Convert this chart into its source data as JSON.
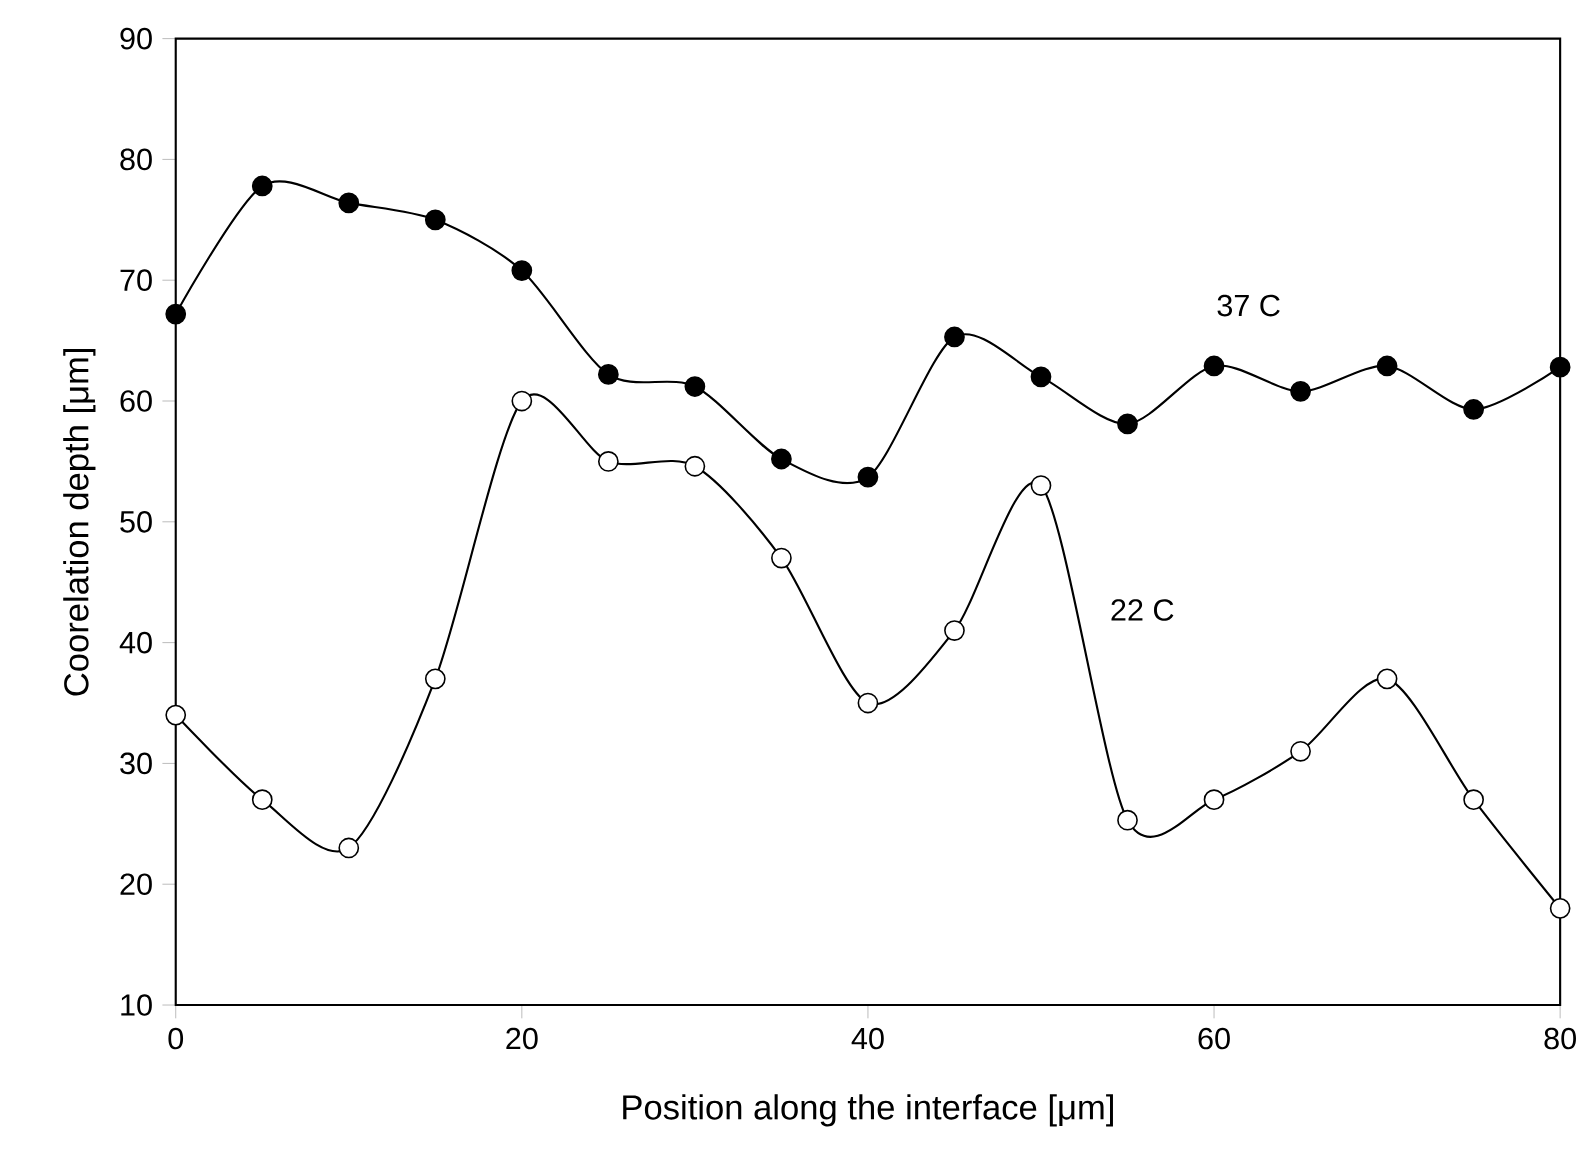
{
  "chart_data": {
    "type": "line",
    "xlabel": "Position along the interface [μm]",
    "ylabel": "Coorelation depth [μm]",
    "x": [
      0,
      5,
      10,
      15,
      20,
      25,
      30,
      35,
      40,
      45,
      50,
      55,
      60,
      65,
      70,
      75,
      80
    ],
    "series": [
      {
        "name": "37 C",
        "color": "#000000",
        "values": [
          67.2,
          77.8,
          76.4,
          75,
          70.8,
          62.2,
          61.2,
          55.2,
          53.7,
          65.3,
          62,
          58.1,
          62.9,
          60.8,
          62.9,
          59.3,
          62.8
        ]
      },
      {
        "name": "22 C",
        "color": "#000000",
        "values": [
          34,
          27,
          23,
          37,
          60,
          55,
          54.6,
          47,
          35,
          41,
          53,
          25.3,
          27,
          31,
          37,
          27,
          18
        ]
      }
    ],
    "xlim": [
      0,
      80
    ],
    "ylim": [
      10,
      90
    ],
    "xticks": [
      0,
      20,
      40,
      60,
      80
    ],
    "yticks": [
      10,
      20,
      30,
      40,
      50,
      60,
      70,
      80,
      90
    ],
    "grid": false,
    "legend": false,
    "marker": "circle",
    "line_style": "solid"
  }
}
